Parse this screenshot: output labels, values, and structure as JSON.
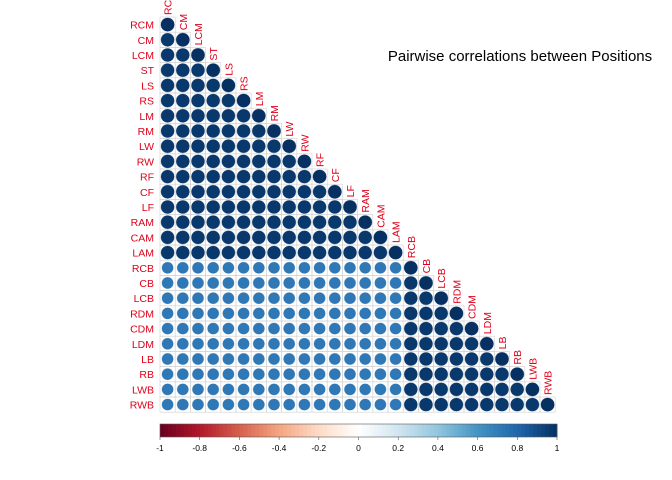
{
  "chart_data": {
    "type": "heatmap",
    "title": "Pairwise correlations between Positions",
    "subtype": "correlation-matrix-lower-triangle-circles",
    "labels": [
      "RCM",
      "CM",
      "LCM",
      "ST",
      "LS",
      "RS",
      "LM",
      "RM",
      "LW",
      "RW",
      "RF",
      "CF",
      "LF",
      "RAM",
      "CAM",
      "LAM",
      "RCB",
      "CB",
      "LCB",
      "RDM",
      "CDM",
      "LDM",
      "LB",
      "RB",
      "LWB",
      "RWB"
    ],
    "attacking_group": [
      "RCM",
      "CM",
      "LCM",
      "ST",
      "LS",
      "RS",
      "LM",
      "RM",
      "LW",
      "RW",
      "RF",
      "CF",
      "LF",
      "RAM",
      "CAM",
      "LAM"
    ],
    "defending_group": [
      "RCB",
      "CB",
      "LCB",
      "RDM",
      "CDM",
      "LDM",
      "LB",
      "RB",
      "LWB",
      "RWB"
    ],
    "correlation_within_group": 0.97,
    "correlation_between_groups": 0.72,
    "correlation_diagonal": 1.0,
    "colorbar": {
      "min": -1,
      "max": 1,
      "ticks": [
        "-1",
        "-0.8",
        "-0.6",
        "-0.4",
        "-0.2",
        "0",
        "0.2",
        "0.4",
        "0.6",
        "0.8",
        "1"
      ],
      "colors": [
        "#67001f",
        "#b2182b",
        "#d6604d",
        "#f4a582",
        "#fddbc7",
        "#ffffff",
        "#d1e5f0",
        "#92c5de",
        "#4393c3",
        "#2166ac",
        "#053061"
      ]
    },
    "label_color": "#e0001a",
    "grid": true
  }
}
